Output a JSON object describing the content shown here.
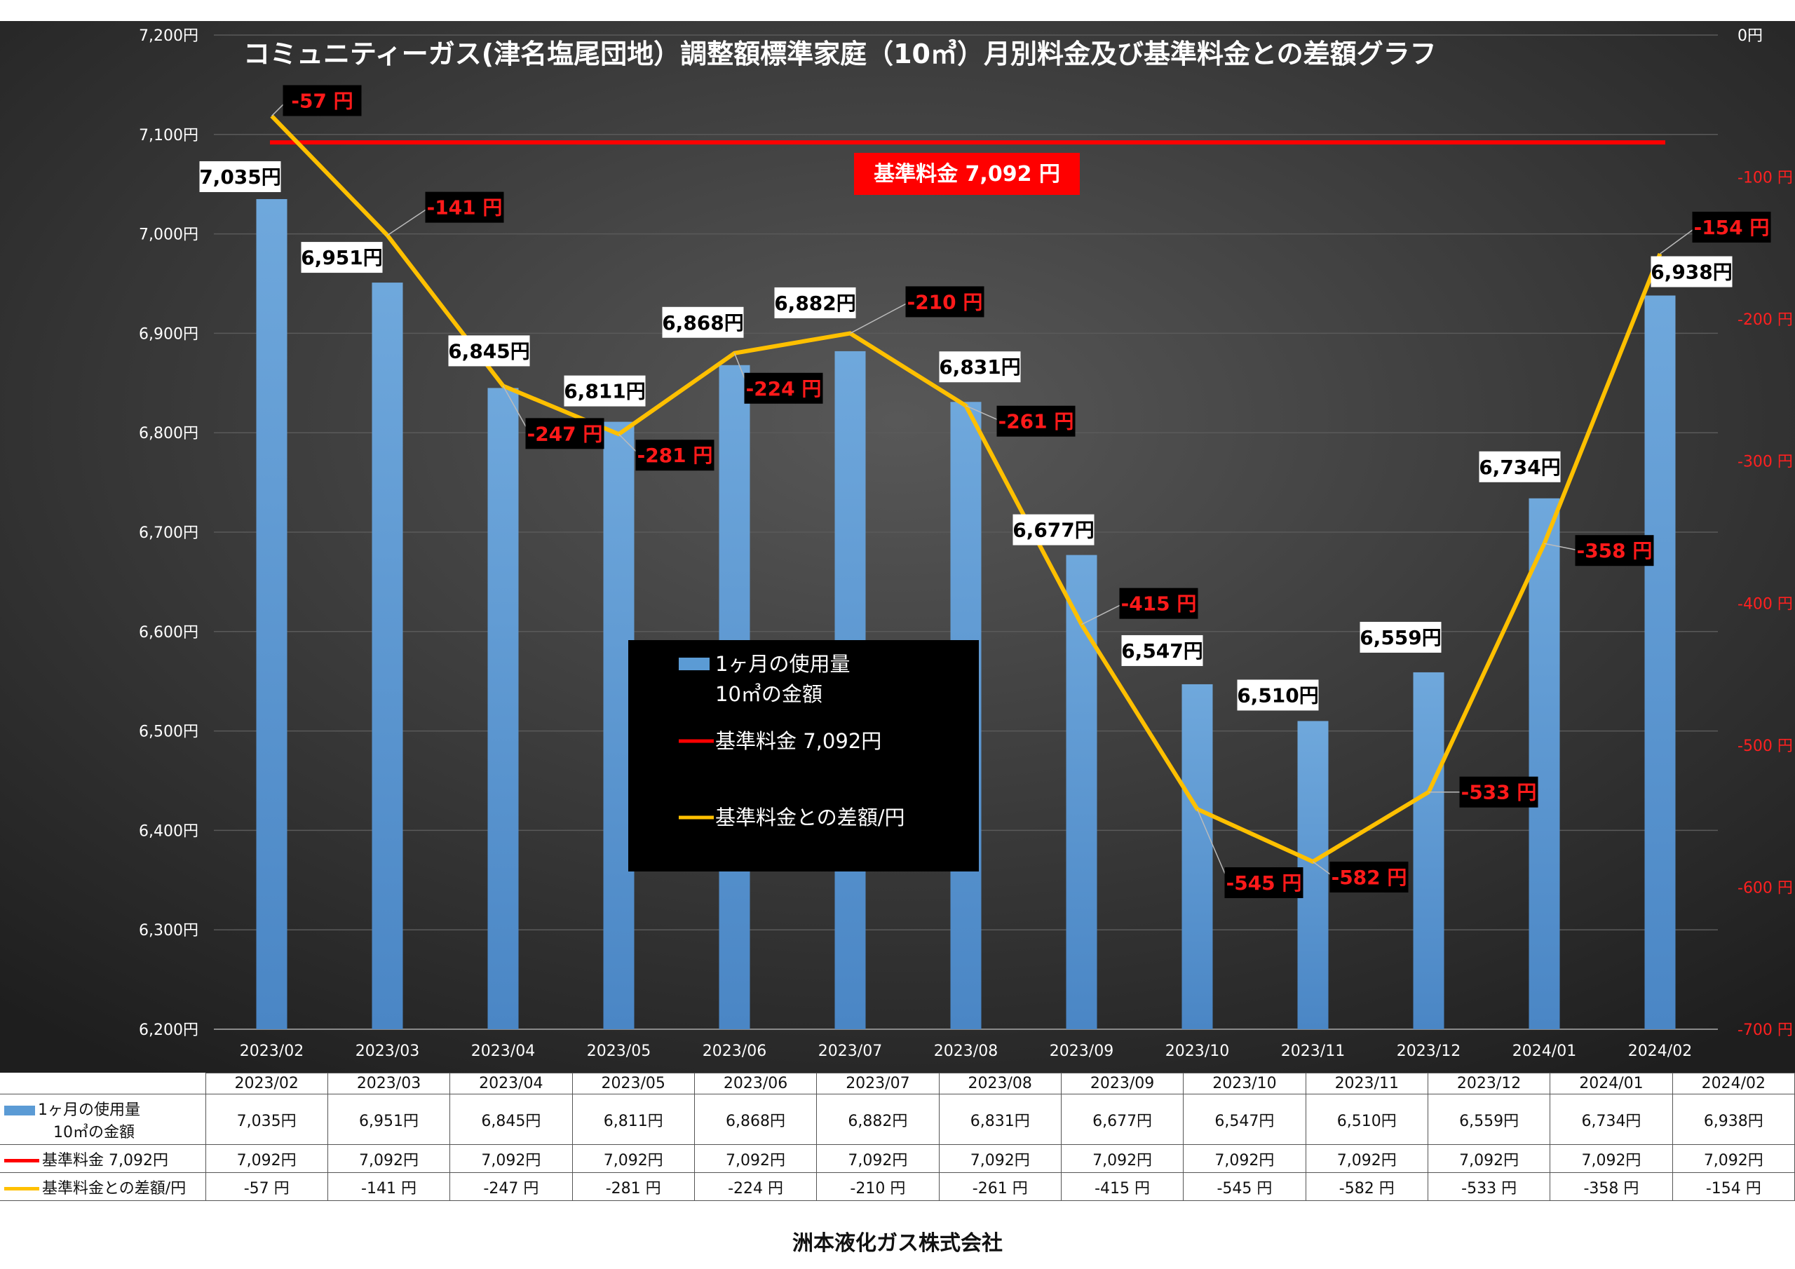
{
  "chart_data": {
    "type": "bar",
    "title": "コミュニティーガス(津名塩尾団地）調整額標準家庭（10㎥）月別料金及び基準料金との差額グラフ",
    "categories": [
      "2023/02",
      "2023/03",
      "2023/04",
      "2023/05",
      "2023/06",
      "2023/07",
      "2023/08",
      "2023/09",
      "2023/10",
      "2023/11",
      "2023/12",
      "2024/01",
      "2024/02"
    ],
    "series": [
      {
        "name": "1ヶ月の使用量 10㎥の金額",
        "name_line1": "1ヶ月の使用量",
        "name_line2": "10㎥の金額",
        "type": "bar",
        "axis": "left",
        "color": "#5b9bd5",
        "values": [
          7035,
          6951,
          6845,
          6811,
          6868,
          6882,
          6831,
          6677,
          6547,
          6510,
          6559,
          6734,
          6938
        ],
        "labels": [
          "7,035円",
          "6,951円",
          "6,845円",
          "6,811円",
          "6,868円",
          "6,882円",
          "6,831円",
          "6,677円",
          "6,547円",
          "6,510円",
          "6,559円",
          "6,734円",
          "6,938円"
        ]
      },
      {
        "name": "基準料金 7,092円",
        "table_name": "基準料金  7,092円",
        "type": "line",
        "axis": "left",
        "color": "#ff0000",
        "values": [
          7092,
          7092,
          7092,
          7092,
          7092,
          7092,
          7092,
          7092,
          7092,
          7092,
          7092,
          7092,
          7092
        ],
        "labels": [
          "7,092円",
          "7,092円",
          "7,092円",
          "7,092円",
          "7,092円",
          "7,092円",
          "7,092円",
          "7,092円",
          "7,092円",
          "7,092円",
          "7,092円",
          "7,092円",
          "7,092円"
        ]
      },
      {
        "name": "基準料金との差額/円",
        "type": "line",
        "axis": "right",
        "color": "#ffc000",
        "values": [
          -57,
          -141,
          -247,
          -281,
          -224,
          -210,
          -261,
          -415,
          -545,
          -582,
          -533,
          -358,
          -154
        ],
        "labels": [
          "-57 円",
          "-141 円",
          "-247 円",
          "-281 円",
          "-224 円",
          "-210 円",
          "-261 円",
          "-415 円",
          "-545 円",
          "-582 円",
          "-533 円",
          "-358 円",
          "-154 円"
        ]
      }
    ],
    "y_left": {
      "ylim": [
        6200,
        7200
      ],
      "ticks": [
        "6,200円",
        "6,300円",
        "6,400円",
        "6,500円",
        "6,600円",
        "6,700円",
        "6,800円",
        "6,900円",
        "7,000円",
        "7,100円",
        "7,200円"
      ]
    },
    "y_right": {
      "ylim": [
        -700,
        0
      ],
      "ticks": [
        "-700 円",
        "-600 円",
        "-500 円",
        "-400 円",
        "-300 円",
        "-200 円",
        "-100 円",
        "0円"
      ]
    },
    "base_fee_label": "基準料金  7,092  円",
    "legend": {
      "placement": "center",
      "items": [
        "1ヶ月の使用量",
        "10㎥の金額",
        "基準料金   7,092円",
        "基準料金との差額/円"
      ]
    },
    "grid": true
  },
  "table": {
    "rows": [
      {
        "label": "1ヶ月の使用量",
        "label2": "10㎥の金額"
      },
      {
        "label": "基準料金  7,092円"
      },
      {
        "label": "基準料金との差額/円"
      }
    ]
  },
  "footer": {
    "company": "洲本液化ガス株式会社"
  }
}
